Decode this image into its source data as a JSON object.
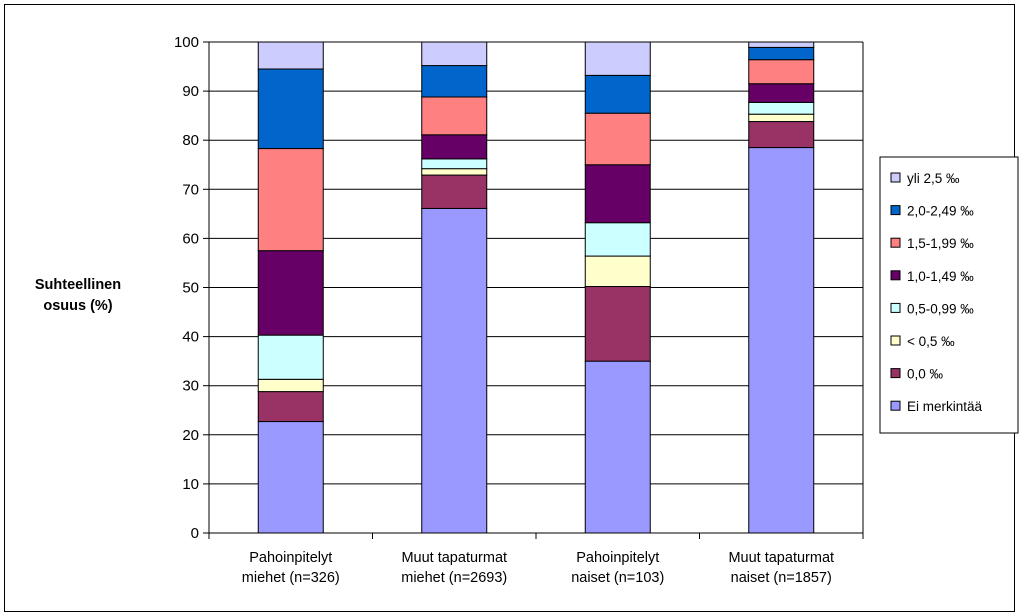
{
  "chart_data": {
    "type": "bar",
    "stacked": true,
    "title": "",
    "xlabel": "",
    "ylabel": [
      "Suhteellinen",
      "osuus (%)"
    ],
    "ylim": [
      0,
      100
    ],
    "yticks": [
      0,
      10,
      20,
      30,
      40,
      50,
      60,
      70,
      80,
      90,
      100
    ],
    "grid": true,
    "legend_position": "right",
    "categories": [
      [
        "Pahoinpitelyt",
        "miehet (n=326)"
      ],
      [
        "Muut tapaturmat",
        "miehet (n=2693)"
      ],
      [
        "Pahoinpitelyt",
        "naiset (n=103)"
      ],
      [
        "Muut tapaturmat",
        "naiset (n=1857)"
      ]
    ],
    "series": [
      {
        "name": "Ei merkintää",
        "color": "#9999ff",
        "values": [
          22.7,
          66.1,
          35.0,
          78.5
        ]
      },
      {
        "name": "0,0 ‰",
        "color": "#993366",
        "values": [
          6.1,
          6.8,
          15.2,
          5.3
        ]
      },
      {
        "name": "< 0,5 ‰",
        "color": "#ffffcc",
        "values": [
          2.5,
          1.3,
          6.2,
          1.5
        ]
      },
      {
        "name": "0,5-0,99 ‰",
        "color": "#ccffff",
        "values": [
          9.0,
          2.0,
          6.8,
          2.4
        ]
      },
      {
        "name": "1,0-1,49 ‰",
        "color": "#660066",
        "values": [
          17.2,
          4.9,
          11.8,
          3.8
        ]
      },
      {
        "name": "1,5-1,99 ‰",
        "color": "#ff8080",
        "values": [
          20.8,
          7.7,
          10.5,
          4.9
        ]
      },
      {
        "name": "2,0-2,49 ‰",
        "color": "#0066cc",
        "values": [
          16.2,
          6.4,
          7.7,
          2.5
        ]
      },
      {
        "name": "yli 2,5 ‰",
        "color": "#ccccff",
        "values": [
          5.5,
          4.8,
          6.8,
          1.1
        ]
      }
    ]
  }
}
